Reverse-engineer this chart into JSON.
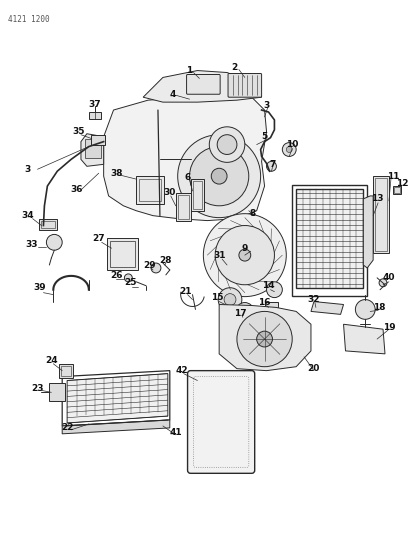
{
  "title": "4121 1200",
  "bg_color": "#ffffff",
  "line_color": "#2a2a2a",
  "fig_width": 4.08,
  "fig_height": 5.33,
  "dpi": 100
}
